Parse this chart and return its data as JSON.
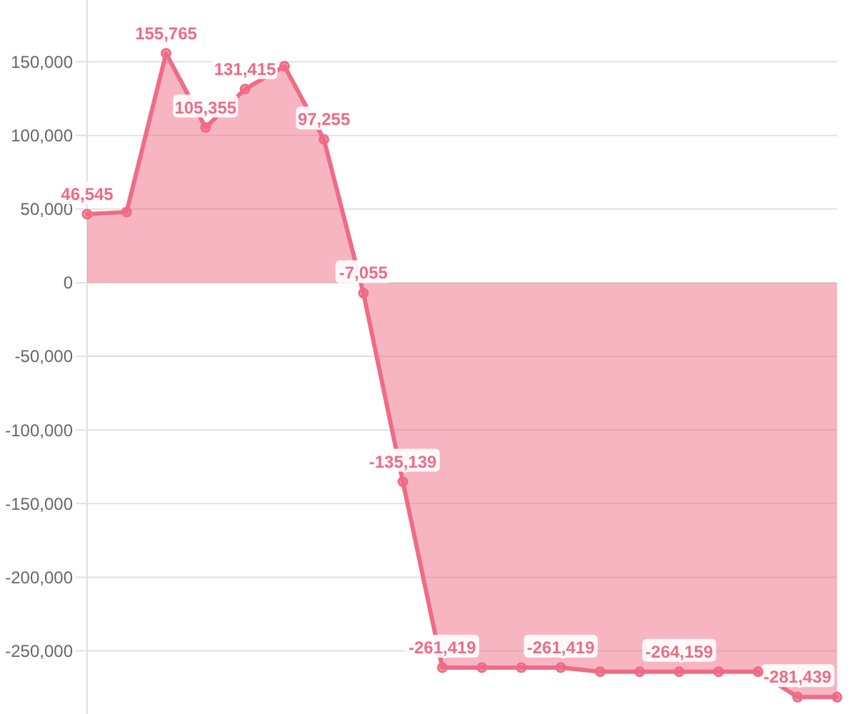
{
  "chart_data": {
    "type": "area",
    "categories": [
      null,
      null,
      null,
      null,
      null,
      null,
      null,
      null,
      null,
      null,
      null,
      null,
      null,
      null,
      null,
      null,
      null,
      null,
      null,
      null
    ],
    "series": [
      {
        "color": "#ef6b86",
        "values": [
          46545,
          48000,
          155765,
          105355,
          131415,
          147000,
          97255,
          -7055,
          -135139,
          -261419,
          -261419,
          -261419,
          -261419,
          -264159,
          -264159,
          -264159,
          -264159,
          -264159,
          -281439,
          -281439
        ],
        "value_labels": [
          "46,545",
          null,
          "155,765",
          "105,355",
          "131,415",
          null,
          "97,255",
          "-7,055",
          "-135,139",
          "-261,419",
          null,
          null,
          "-261,419",
          null,
          null,
          "-264,159",
          null,
          null,
          "-281,439",
          null
        ]
      }
    ],
    "ylim": [
      -290000,
      190000
    ],
    "yticks": [
      {
        "value": -250000,
        "label": "-250,000"
      },
      {
        "value": -200000,
        "label": "-200,000"
      },
      {
        "value": -150000,
        "label": "-150,000"
      },
      {
        "value": -100000,
        "label": "-100,000"
      },
      {
        "value": -50000,
        "label": "-50,000"
      },
      0,
      {
        "value": 50000,
        "label": "50,000"
      },
      {
        "value": 100000,
        "label": "100,000"
      },
      {
        "value": 150000,
        "label": "150,000"
      }
    ],
    "grid": "y",
    "marker": "circle"
  }
}
